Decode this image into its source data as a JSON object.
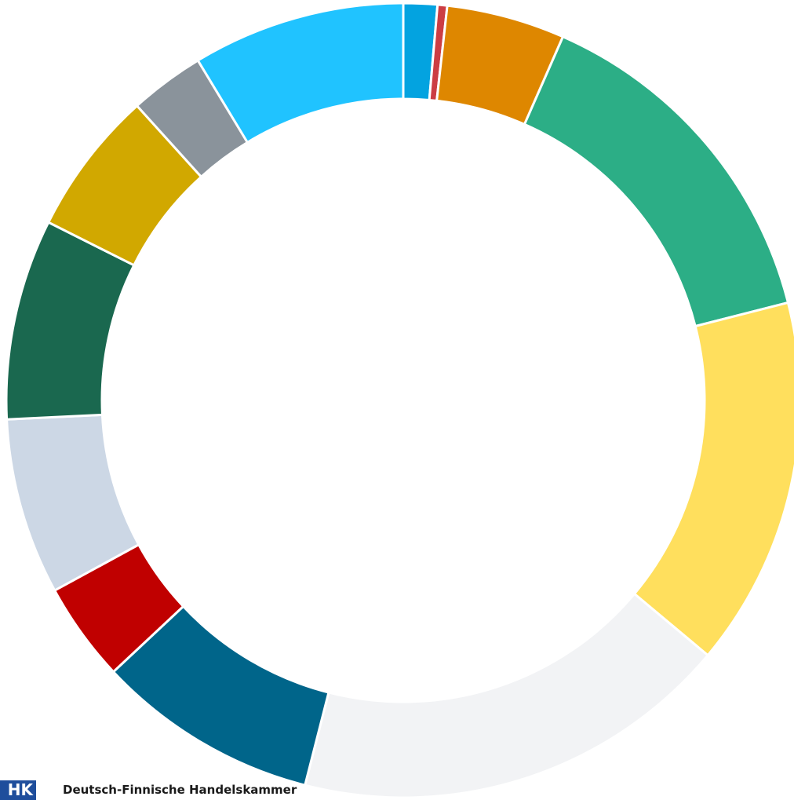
{
  "chart_data": {
    "type": "pie",
    "donut": true,
    "start_at": "top",
    "direction": "clockwise",
    "legend": "none",
    "title": "",
    "slices": [
      {
        "value": 1.4,
        "color": "#03A3E0"
      },
      {
        "value": 0.4,
        "color": "#CC3D43"
      },
      {
        "value": 4.9,
        "color": "#DE8700"
      },
      {
        "value": 14.7,
        "color": "#2CAE86"
      },
      {
        "value": 15.3,
        "color": "#FFDF5D"
      },
      {
        "value": 18.2,
        "color": "#F2F3F5"
      },
      {
        "value": 9.2,
        "color": "#00658A"
      },
      {
        "value": 4.1,
        "color": "#C00000"
      },
      {
        "value": 7.3,
        "color": "#CCD7E5"
      },
      {
        "value": 8.3,
        "color": "#1A684F"
      },
      {
        "value": 6.0,
        "color": "#D1A800"
      },
      {
        "value": 3.1,
        "color": "#8A939B"
      },
      {
        "value": 8.8,
        "color": "#20C3FF"
      }
    ]
  },
  "footer": {
    "logo_mark": "HK",
    "logo_text": "Deutsch-Finnische Handelskammer"
  }
}
